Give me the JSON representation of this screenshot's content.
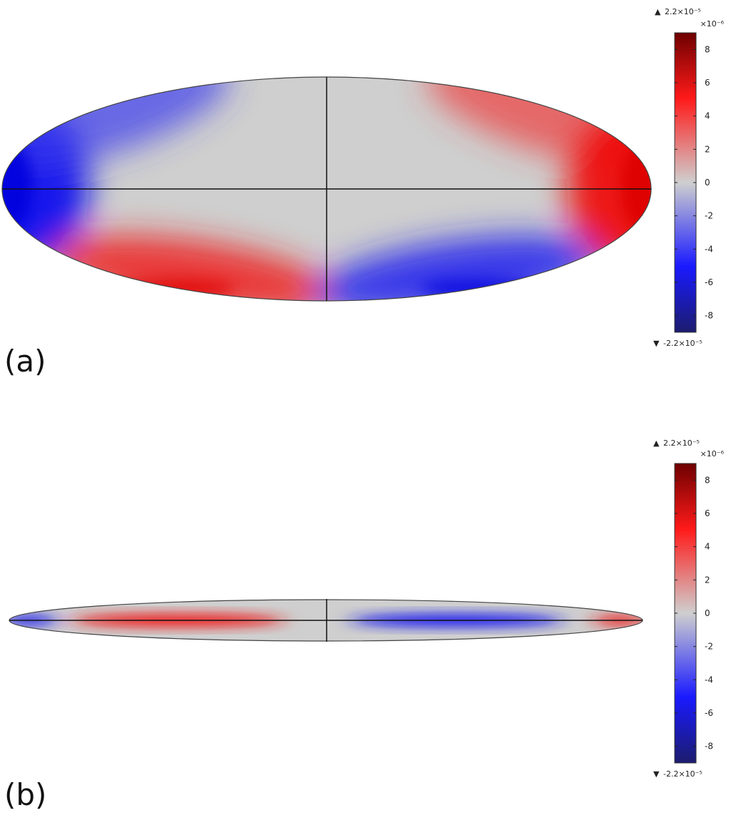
{
  "chart_data": [
    {
      "type": "heatmap",
      "panel_label": "(a)",
      "colorbar": {
        "max_label": "2.2×10⁻⁵",
        "min_label": "-2.2×10⁻⁵",
        "multiplier": "×10⁻⁶",
        "range": [
          -9,
          9
        ],
        "ticks": [
          8,
          6,
          4,
          2,
          0,
          -2,
          -4,
          -6,
          -8
        ],
        "tick_labels": [
          "8",
          "6",
          "4",
          "2",
          "0",
          "-2",
          "-4",
          "-6",
          "-8"
        ],
        "colormap": [
          "#1c1c6e",
          "#1a1aff",
          "#cfcfcf",
          "#ff1a1a",
          "#6e0000"
        ]
      },
      "field": "x*y antisymmetric, strongest at ellipse boundary (blue upper-left & lower-right, red upper-right & lower-left)"
    },
    {
      "type": "heatmap",
      "panel_label": "(b)",
      "colorbar": {
        "max_label": "2.2×10⁻⁵",
        "min_label": "-2.2×10⁻⁵",
        "multiplier": "×10⁻⁶",
        "range": [
          -9,
          9
        ],
        "ticks": [
          8,
          6,
          4,
          2,
          0,
          -2,
          -4,
          -6,
          -8
        ],
        "tick_labels": [
          "8",
          "6",
          "4",
          "2",
          "0",
          "-2",
          "-4",
          "-6",
          "-8"
        ],
        "colormap": [
          "#1c1c6e",
          "#1a1aff",
          "#cfcfcf",
          "#ff1a1a",
          "#6e0000"
        ]
      },
      "field": "thin ellipse: blue left tip, red band left of center, blue band right of center, red right tip"
    }
  ]
}
